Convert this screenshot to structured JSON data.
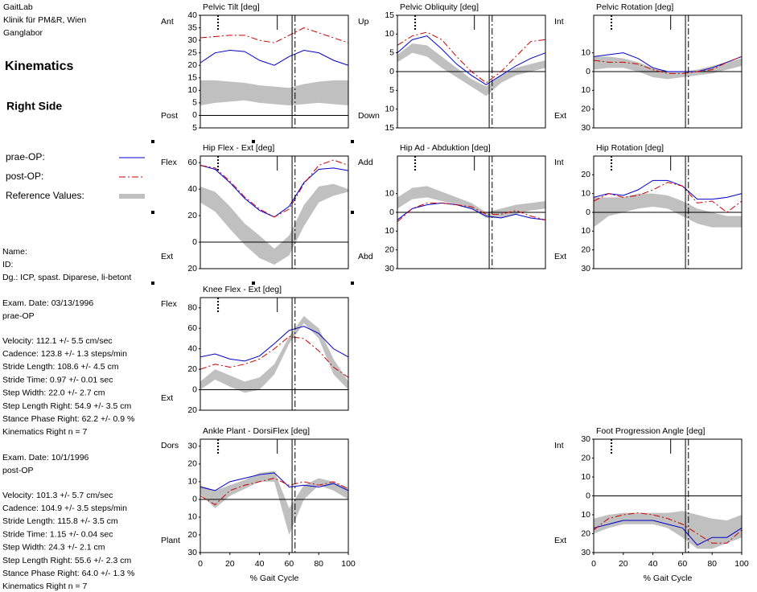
{
  "header": [
    "GaitLab",
    "Klinik für PM&R, Wien",
    "Ganglabor"
  ],
  "heading": "Kinematics",
  "subheading": "Right Side",
  "legend": [
    {
      "label": "prae-OP:",
      "color": "#0000cc",
      "style": "solid"
    },
    {
      "label": "post-OP:",
      "color": "#cc0000",
      "style": "dashed"
    },
    {
      "label": "Reference Values:",
      "color": "#c0c0c0",
      "style": "band"
    }
  ],
  "patient": [
    "Name:",
    "ID:",
    "Dg.: ICP, spast. Diparese, li-betont"
  ],
  "exam_pre": [
    "Exam. Date: 03/13/1996",
    "prae-OP",
    "Velocity: 112.1 +/- 5.5 cm/sec",
    "Cadence: 123.8 +/- 1.3 steps/min",
    "Stride Length: 108.6 +/- 4.5 cm",
    "Stride Time: 0.97 +/- 0.01 sec",
    "Step Width: 22.0 +/- 2.7 cm",
    "Step Length Right: 54.9 +/- 3.5 cm",
    "Stance Phase Right: 62.2 +/- 0.9 %",
    "Kinematics Right n = 7"
  ],
  "exam_post": [
    "Exam. Date: 10/1/1996",
    "post-OP",
    "Velocity: 101.3 +/- 5.7 cm/sec",
    "Cadence: 104.9 +/- 3.5 steps/min",
    "Stride Length: 115.8 +/- 3.5 cm",
    "Stride Time: 1.15 +/- 0.04 sec",
    "Step Width: 24.3 +/- 2.1 cm",
    "Step Length Right: 55.6 +/- 2.3 cm",
    "Stance Phase Right: 64.0 +/- 1.3 %",
    "Kinematics Right n = 7"
  ],
  "events": [
    {
      "x": 12,
      "style": "dotted",
      "full": false
    },
    {
      "x": 52,
      "style": "solid",
      "full": false
    },
    {
      "x": 62,
      "style": "solid",
      "full": true
    },
    {
      "x": 64,
      "style": "dashed",
      "full": true
    }
  ],
  "chart_data": [
    {
      "type": "line",
      "title": "Pelvic Tilt [deg]",
      "top_label": "Ant",
      "bottom_label": "Post",
      "ylim": [
        -5,
        40
      ],
      "yticks": [
        40,
        35,
        30,
        25,
        20,
        15,
        10,
        5,
        0,
        {
          "value": -5,
          "label": "5"
        }
      ],
      "zero_line": true,
      "x": [
        0,
        10,
        20,
        30,
        40,
        50,
        60,
        70,
        80,
        90,
        100
      ],
      "series": [
        {
          "color": "#0000cc",
          "style": "solid",
          "values": [
            21,
            25,
            26,
            25.5,
            22,
            20,
            23.5,
            26,
            25,
            22,
            20
          ]
        },
        {
          "color": "#cc0000",
          "style": "dashed",
          "values": [
            31,
            31.5,
            32,
            32,
            30,
            29,
            32,
            35,
            33,
            31,
            29
          ]
        }
      ],
      "band": {
        "color": "#c0c0c0",
        "lower": [
          4,
          5,
          5.5,
          6,
          5,
          4.5,
          4,
          4.5,
          5,
          4.5,
          4
        ],
        "upper": [
          14,
          14,
          13.5,
          13,
          12,
          11.5,
          11,
          12.5,
          13.5,
          14,
          14
        ]
      }
    },
    {
      "type": "line",
      "title": "Pelvic Obliquity [deg]",
      "top_label": "Up",
      "bottom_label": "Down",
      "ylim": [
        -15,
        15
      ],
      "yticks": [
        15,
        10,
        5,
        0,
        {
          "value": -5,
          "label": "5"
        },
        {
          "value": -10,
          "label": "10"
        },
        {
          "value": -15,
          "label": "15"
        }
      ],
      "zero_line": true,
      "x": [
        0,
        10,
        20,
        30,
        40,
        50,
        60,
        70,
        80,
        90,
        100
      ],
      "series": [
        {
          "color": "#0000cc",
          "style": "solid",
          "values": [
            5,
            8.5,
            9.5,
            6,
            2,
            -1,
            -3.5,
            -1,
            1.5,
            3.5,
            5
          ]
        },
        {
          "color": "#cc0000",
          "style": "dashed",
          "values": [
            7,
            9.5,
            10.5,
            8.5,
            4,
            0,
            -3,
            0,
            4,
            8,
            8.5
          ]
        }
      ],
      "band": {
        "color": "#c0c0c0",
        "lower": [
          2.5,
          5,
          4,
          1,
          -1.5,
          -4,
          -6.5,
          -3,
          -1,
          0,
          1
        ],
        "upper": [
          4.5,
          7.5,
          7,
          4,
          1,
          -2,
          -4,
          -1,
          1,
          2,
          3
        ]
      }
    },
    {
      "type": "line",
      "title": "Pelvic Rotation [deg]",
      "top_label": "Int",
      "bottom_label": "Ext",
      "ylim": [
        -30,
        30
      ],
      "yticks": [
        10,
        0,
        {
          "value": -10,
          "label": "10"
        },
        {
          "value": -20,
          "label": "20"
        },
        {
          "value": -30,
          "label": "30"
        }
      ],
      "zero_line": true,
      "x": [
        0,
        10,
        20,
        30,
        40,
        50,
        60,
        70,
        80,
        90,
        100
      ],
      "series": [
        {
          "color": "#0000cc",
          "style": "solid",
          "values": [
            8,
            9,
            10,
            7,
            2,
            0,
            0,
            0,
            2,
            5,
            8
          ]
        },
        {
          "color": "#cc0000",
          "style": "dashed",
          "values": [
            6,
            5,
            5,
            4,
            1,
            -1,
            -1,
            0,
            1,
            5,
            8
          ]
        }
      ],
      "band": {
        "color": "#c0c0c0",
        "lower": [
          1,
          2,
          2,
          0,
          -3,
          -4,
          -3,
          -2,
          -1,
          1,
          3
        ],
        "upper": [
          8,
          8,
          7,
          5,
          2,
          0,
          0,
          1,
          3,
          5,
          7
        ]
      }
    },
    {
      "type": "line",
      "title": "Hip Flex - Ext [deg]",
      "top_label": "Flex",
      "bottom_label": "Ext",
      "ylim": [
        -20,
        65
      ],
      "yticks": [
        60,
        40,
        20,
        0,
        {
          "value": -20,
          "label": "20"
        }
      ],
      "zero_line": true,
      "x": [
        0,
        10,
        20,
        30,
        40,
        50,
        60,
        70,
        80,
        90,
        100
      ],
      "series": [
        {
          "color": "#0000cc",
          "style": "solid",
          "values": [
            58,
            55,
            45,
            33,
            24,
            19,
            27,
            45,
            55,
            56,
            54
          ]
        },
        {
          "color": "#cc0000",
          "style": "dashed",
          "values": [
            58,
            56,
            46,
            34,
            25,
            19,
            25,
            44,
            58,
            62,
            58
          ]
        }
      ],
      "band": {
        "color": "#c0c0c0",
        "lower": [
          30,
          23,
          10,
          -2,
          -12,
          -17,
          -10,
          12,
          30,
          35,
          38
        ],
        "upper": [
          42,
          38,
          27,
          14,
          5,
          -5,
          5,
          28,
          42,
          44,
          40
        ]
      }
    },
    {
      "type": "line",
      "title": "Hip Ad - Abduktion [deg]",
      "top_label": "Add",
      "bottom_label": "Abd",
      "ylim": [
        -30,
        30
      ],
      "yticks": [
        10,
        0,
        {
          "value": -10,
          "label": "10"
        },
        {
          "value": -20,
          "label": "20"
        },
        {
          "value": -30,
          "label": "30"
        }
      ],
      "zero_line": true,
      "x": [
        0,
        10,
        20,
        30,
        40,
        50,
        60,
        70,
        80,
        90,
        100
      ],
      "series": [
        {
          "color": "#0000cc",
          "style": "solid",
          "values": [
            -4,
            2,
            4,
            5,
            4,
            2,
            -2,
            -3,
            -1,
            -3,
            -4
          ]
        },
        {
          "color": "#cc0000",
          "style": "dashed",
          "values": [
            -5,
            2,
            5,
            5,
            4,
            3,
            -1,
            -1,
            1,
            -2,
            -4
          ]
        }
      ],
      "band": {
        "color": "#c0c0c0",
        "lower": [
          2,
          7,
          8,
          6,
          4,
          2,
          -3,
          -3,
          -1,
          1,
          2
        ],
        "upper": [
          8,
          13,
          14,
          11,
          8,
          5,
          0,
          2,
          4,
          5,
          6
        ]
      }
    },
    {
      "type": "line",
      "title": "Hip Rotation [deg]",
      "top_label": "Int",
      "bottom_label": "Ext",
      "ylim": [
        -30,
        30
      ],
      "yticks": [
        20,
        10,
        0,
        {
          "value": -10,
          "label": "10"
        },
        {
          "value": -20,
          "label": "20"
        },
        {
          "value": -30,
          "label": "30"
        }
      ],
      "zero_line": true,
      "x": [
        0,
        10,
        20,
        30,
        40,
        50,
        60,
        70,
        80,
        90,
        100
      ],
      "series": [
        {
          "color": "#0000cc",
          "style": "solid",
          "values": [
            8,
            10,
            9,
            12,
            17,
            17,
            14,
            7,
            7,
            8,
            10
          ]
        },
        {
          "color": "#cc0000",
          "style": "dashed",
          "values": [
            6,
            10,
            8,
            9,
            12,
            16,
            14,
            5,
            6,
            0,
            6
          ]
        }
      ],
      "band": {
        "color": "#c0c0c0",
        "lower": [
          -8,
          -2,
          0,
          2,
          3,
          2,
          -2,
          -6,
          -8,
          -8,
          -8
        ],
        "upper": [
          8,
          8,
          8,
          10,
          10,
          9,
          6,
          2,
          0,
          -2,
          -2
        ]
      }
    },
    {
      "type": "line",
      "title": "Knee Flex - Ext [deg]",
      "top_label": "Flex",
      "bottom_label": "Ext",
      "ylim": [
        -20,
        90
      ],
      "yticks": [
        80,
        60,
        40,
        20,
        0,
        {
          "value": -20,
          "label": "20"
        }
      ],
      "zero_line": true,
      "x": [
        0,
        10,
        20,
        30,
        40,
        50,
        60,
        70,
        80,
        90,
        100
      ],
      "series": [
        {
          "color": "#0000cc",
          "style": "solid",
          "values": [
            32,
            35,
            30,
            28,
            33,
            45,
            58,
            62,
            55,
            40,
            32
          ]
        },
        {
          "color": "#cc0000",
          "style": "dashed",
          "values": [
            20,
            25,
            22,
            25,
            30,
            40,
            52,
            50,
            38,
            22,
            12
          ]
        }
      ],
      "band": {
        "color": "#c0c0c0",
        "lower": [
          0,
          10,
          3,
          -3,
          0,
          15,
          45,
          65,
          50,
          15,
          0
        ],
        "upper": [
          8,
          20,
          14,
          8,
          12,
          25,
          52,
          72,
          60,
          30,
          8
        ]
      }
    },
    {
      "type": "line",
      "title": "Ankle Plant - DorsiFlex [deg]",
      "top_label": "Dors",
      "bottom_label": "Plant",
      "xlabel": "% Gait Cycle",
      "ylim": [
        -30,
        34
      ],
      "yticks": [
        30,
        20,
        10,
        0,
        {
          "value": -10,
          "label": "10"
        },
        {
          "value": -20,
          "label": "20"
        },
        {
          "value": -30,
          "label": "30"
        }
      ],
      "zero_line": true,
      "xlim": [
        0,
        100
      ],
      "xticks": [
        0,
        20,
        40,
        60,
        80,
        100
      ],
      "x": [
        0,
        10,
        20,
        30,
        40,
        50,
        60,
        70,
        80,
        90,
        100
      ],
      "series": [
        {
          "color": "#0000cc",
          "style": "solid",
          "values": [
            7,
            5,
            10,
            12,
            14,
            15,
            7,
            8,
            7,
            9,
            5
          ]
        },
        {
          "color": "#cc0000",
          "style": "dashed",
          "values": [
            2,
            -3,
            5,
            8,
            10,
            12,
            8,
            10,
            8,
            10,
            6
          ]
        }
      ],
      "band": {
        "color": "#c0c0c0",
        "lower": [
          3,
          -5,
          2,
          6,
          10,
          10,
          -20,
          0,
          8,
          5,
          0
        ],
        "upper": [
          8,
          5,
          8,
          11,
          15,
          16,
          -5,
          8,
          12,
          10,
          6
        ]
      }
    },
    {
      "type": "line",
      "title": "Foot Progression Angle [deg]",
      "top_label": "Int",
      "bottom_label": "Ext",
      "xlabel": "% Gait Cycle",
      "ylim": [
        -30,
        30
      ],
      "yticks": [
        30,
        20,
        10,
        0,
        {
          "value": -10,
          "label": "10"
        },
        {
          "value": -20,
          "label": "20"
        },
        {
          "value": -30,
          "label": "30"
        }
      ],
      "zero_line": true,
      "xlim": [
        0,
        100
      ],
      "xticks": [
        0,
        20,
        40,
        60,
        80,
        100
      ],
      "x": [
        0,
        10,
        20,
        30,
        40,
        50,
        60,
        70,
        80,
        90,
        100
      ],
      "series": [
        {
          "color": "#0000cc",
          "style": "solid",
          "values": [
            -17,
            -15,
            -13,
            -13,
            -13,
            -15,
            -17,
            -26,
            -22,
            -22,
            -17
          ]
        },
        {
          "color": "#cc0000",
          "style": "dashed",
          "values": [
            -18,
            -12,
            -10,
            -9,
            -10,
            -12,
            -15,
            -20,
            -25,
            -25,
            -18
          ]
        }
      ],
      "band": {
        "color": "#c0c0c0",
        "lower": [
          -20,
          -17,
          -15,
          -15,
          -15,
          -17,
          -22,
          -28,
          -28,
          -25,
          -22
        ],
        "upper": [
          -12,
          -10,
          -9,
          -9,
          -9,
          -9,
          -8,
          -10,
          -12,
          -13,
          -10
        ]
      }
    }
  ]
}
